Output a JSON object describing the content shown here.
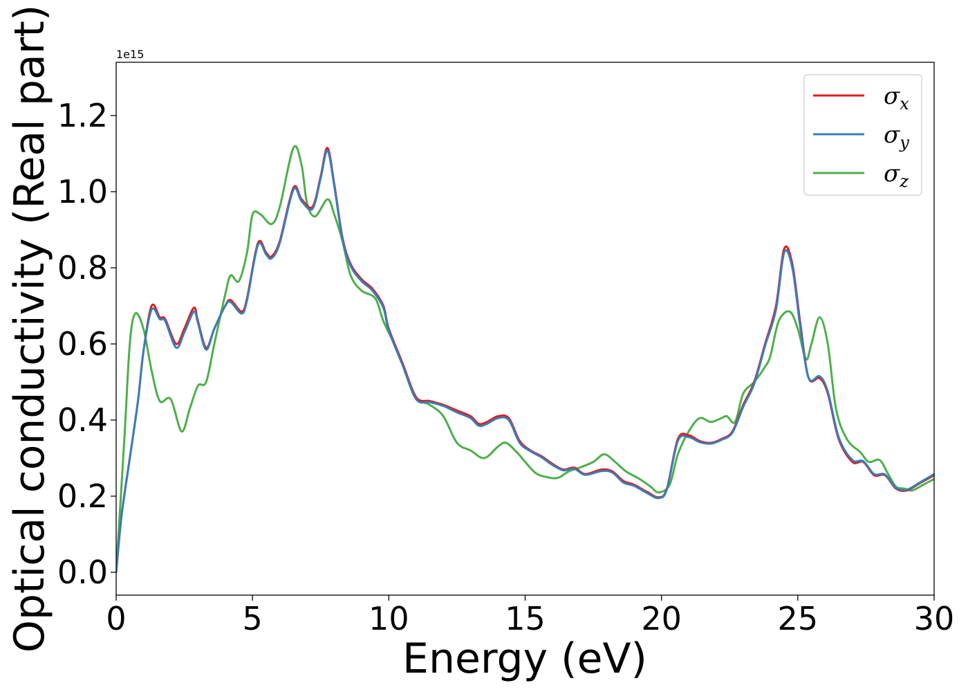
{
  "chart_data": {
    "type": "line",
    "xlabel": "Energy (eV)",
    "ylabel": "Optical conductivity (Real part)",
    "y_offset_label": "1e15",
    "xlim": [
      0,
      30
    ],
    "ylim": [
      -0.06,
      1.34
    ],
    "x_ticks": [
      0,
      5,
      10,
      15,
      20,
      25,
      30
    ],
    "x_tick_labels": [
      "0",
      "5",
      "10",
      "15",
      "20",
      "25",
      "30"
    ],
    "y_ticks": [
      0.0,
      0.2,
      0.4,
      0.6,
      0.8,
      1.0,
      1.2
    ],
    "y_tick_labels": [
      "0.0",
      "0.2",
      "0.4",
      "0.6",
      "0.8",
      "1.0",
      "1.2"
    ],
    "grid": false,
    "legend_position": "top-right",
    "series": [
      {
        "name": "σx",
        "legend_symbol": "σ",
        "legend_subscript": "x",
        "color": "#e41a1c",
        "points": [
          [
            0,
            0.0
          ],
          [
            0.2,
            0.15
          ],
          [
            0.5,
            0.3
          ],
          [
            0.8,
            0.45
          ],
          [
            1.0,
            0.58
          ],
          [
            1.3,
            0.7
          ],
          [
            1.6,
            0.67
          ],
          [
            1.8,
            0.665
          ],
          [
            2.2,
            0.6
          ],
          [
            2.5,
            0.64
          ],
          [
            2.85,
            0.695
          ],
          [
            3.0,
            0.66
          ],
          [
            3.3,
            0.59
          ],
          [
            3.6,
            0.64
          ],
          [
            4.0,
            0.7
          ],
          [
            4.2,
            0.715
          ],
          [
            4.6,
            0.685
          ],
          [
            4.8,
            0.72
          ],
          [
            5.2,
            0.865
          ],
          [
            5.5,
            0.84
          ],
          [
            5.7,
            0.83
          ],
          [
            6.0,
            0.87
          ],
          [
            6.5,
            1.01
          ],
          [
            6.8,
            0.98
          ],
          [
            7.2,
            0.96
          ],
          [
            7.5,
            1.04
          ],
          [
            7.75,
            1.115
          ],
          [
            8.0,
            1.02
          ],
          [
            8.3,
            0.88
          ],
          [
            8.6,
            0.81
          ],
          [
            9.0,
            0.77
          ],
          [
            9.4,
            0.745
          ],
          [
            9.8,
            0.7
          ],
          [
            10.0,
            0.64
          ],
          [
            10.5,
            0.55
          ],
          [
            11.0,
            0.46
          ],
          [
            11.5,
            0.45
          ],
          [
            12.0,
            0.44
          ],
          [
            12.5,
            0.425
          ],
          [
            13.0,
            0.41
          ],
          [
            13.3,
            0.39
          ],
          [
            13.6,
            0.395
          ],
          [
            14.0,
            0.41
          ],
          [
            14.4,
            0.405
          ],
          [
            14.8,
            0.345
          ],
          [
            15.2,
            0.32
          ],
          [
            15.6,
            0.305
          ],
          [
            16.0,
            0.285
          ],
          [
            16.4,
            0.27
          ],
          [
            16.8,
            0.275
          ],
          [
            17.2,
            0.258
          ],
          [
            17.8,
            0.27
          ],
          [
            18.2,
            0.265
          ],
          [
            18.6,
            0.24
          ],
          [
            19.0,
            0.23
          ],
          [
            19.5,
            0.21
          ],
          [
            19.9,
            0.197
          ],
          [
            20.2,
            0.22
          ],
          [
            20.6,
            0.35
          ],
          [
            21.0,
            0.36
          ],
          [
            21.4,
            0.345
          ],
          [
            21.8,
            0.34
          ],
          [
            22.2,
            0.35
          ],
          [
            22.6,
            0.37
          ],
          [
            23.0,
            0.44
          ],
          [
            23.4,
            0.5
          ],
          [
            23.8,
            0.6
          ],
          [
            24.2,
            0.7
          ],
          [
            24.5,
            0.85
          ],
          [
            24.8,
            0.81
          ],
          [
            25.1,
            0.65
          ],
          [
            25.4,
            0.51
          ],
          [
            25.8,
            0.51
          ],
          [
            26.1,
            0.47
          ],
          [
            26.5,
            0.35
          ],
          [
            27.0,
            0.29
          ],
          [
            27.4,
            0.29
          ],
          [
            27.8,
            0.255
          ],
          [
            28.2,
            0.255
          ],
          [
            28.6,
            0.22
          ],
          [
            29.0,
            0.215
          ],
          [
            29.5,
            0.235
          ],
          [
            30.0,
            0.255
          ]
        ]
      },
      {
        "name": "σy",
        "legend_symbol": "σ",
        "legend_subscript": "y",
        "color": "#377eb8",
        "points": [
          [
            0,
            0.0
          ],
          [
            0.2,
            0.15
          ],
          [
            0.5,
            0.3
          ],
          [
            0.8,
            0.45
          ],
          [
            1.0,
            0.58
          ],
          [
            1.3,
            0.69
          ],
          [
            1.6,
            0.665
          ],
          [
            1.8,
            0.66
          ],
          [
            2.2,
            0.59
          ],
          [
            2.5,
            0.63
          ],
          [
            2.85,
            0.685
          ],
          [
            3.0,
            0.655
          ],
          [
            3.3,
            0.585
          ],
          [
            3.6,
            0.64
          ],
          [
            4.0,
            0.7
          ],
          [
            4.2,
            0.71
          ],
          [
            4.6,
            0.68
          ],
          [
            4.8,
            0.715
          ],
          [
            5.2,
            0.86
          ],
          [
            5.5,
            0.835
          ],
          [
            5.7,
            0.825
          ],
          [
            6.0,
            0.865
          ],
          [
            6.5,
            1.005
          ],
          [
            6.8,
            0.975
          ],
          [
            7.2,
            0.955
          ],
          [
            7.5,
            1.035
          ],
          [
            7.75,
            1.108
          ],
          [
            8.0,
            1.015
          ],
          [
            8.3,
            0.875
          ],
          [
            8.6,
            0.805
          ],
          [
            9.0,
            0.765
          ],
          [
            9.4,
            0.74
          ],
          [
            9.8,
            0.695
          ],
          [
            10.0,
            0.635
          ],
          [
            10.5,
            0.545
          ],
          [
            11.0,
            0.455
          ],
          [
            11.5,
            0.447
          ],
          [
            12.0,
            0.437
          ],
          [
            12.5,
            0.42
          ],
          [
            13.0,
            0.405
          ],
          [
            13.3,
            0.385
          ],
          [
            13.6,
            0.39
          ],
          [
            14.0,
            0.405
          ],
          [
            14.4,
            0.4
          ],
          [
            14.8,
            0.34
          ],
          [
            15.2,
            0.318
          ],
          [
            15.6,
            0.302
          ],
          [
            16.0,
            0.282
          ],
          [
            16.4,
            0.268
          ],
          [
            16.8,
            0.272
          ],
          [
            17.2,
            0.256
          ],
          [
            17.8,
            0.266
          ],
          [
            18.2,
            0.262
          ],
          [
            18.6,
            0.236
          ],
          [
            19.0,
            0.227
          ],
          [
            19.5,
            0.207
          ],
          [
            19.9,
            0.195
          ],
          [
            20.2,
            0.218
          ],
          [
            20.6,
            0.345
          ],
          [
            21.0,
            0.355
          ],
          [
            21.4,
            0.342
          ],
          [
            21.8,
            0.338
          ],
          [
            22.2,
            0.348
          ],
          [
            22.6,
            0.367
          ],
          [
            23.0,
            0.435
          ],
          [
            23.4,
            0.495
          ],
          [
            23.8,
            0.595
          ],
          [
            24.2,
            0.69
          ],
          [
            24.5,
            0.84
          ],
          [
            24.8,
            0.8
          ],
          [
            25.1,
            0.64
          ],
          [
            25.4,
            0.51
          ],
          [
            25.8,
            0.515
          ],
          [
            26.1,
            0.475
          ],
          [
            26.5,
            0.355
          ],
          [
            27.0,
            0.295
          ],
          [
            27.4,
            0.292
          ],
          [
            27.8,
            0.258
          ],
          [
            28.2,
            0.257
          ],
          [
            28.6,
            0.222
          ],
          [
            29.0,
            0.217
          ],
          [
            29.5,
            0.237
          ],
          [
            30.0,
            0.258
          ]
        ]
      },
      {
        "name": "σz",
        "legend_symbol": "σ",
        "legend_subscript": "z",
        "color": "#4daf4a",
        "points": [
          [
            0,
            0.0
          ],
          [
            0.3,
            0.35
          ],
          [
            0.5,
            0.6
          ],
          [
            0.7,
            0.68
          ],
          [
            1.0,
            0.64
          ],
          [
            1.3,
            0.53
          ],
          [
            1.6,
            0.45
          ],
          [
            2.0,
            0.455
          ],
          [
            2.4,
            0.37
          ],
          [
            2.7,
            0.43
          ],
          [
            3.0,
            0.49
          ],
          [
            3.3,
            0.5
          ],
          [
            3.6,
            0.6
          ],
          [
            4.0,
            0.73
          ],
          [
            4.2,
            0.78
          ],
          [
            4.5,
            0.765
          ],
          [
            4.8,
            0.84
          ],
          [
            5.0,
            0.94
          ],
          [
            5.3,
            0.94
          ],
          [
            5.7,
            0.915
          ],
          [
            6.0,
            0.96
          ],
          [
            6.5,
            1.115
          ],
          [
            6.8,
            1.07
          ],
          [
            7.0,
            0.97
          ],
          [
            7.3,
            0.935
          ],
          [
            7.75,
            0.98
          ],
          [
            8.0,
            0.94
          ],
          [
            8.3,
            0.87
          ],
          [
            8.6,
            0.78
          ],
          [
            9.0,
            0.74
          ],
          [
            9.5,
            0.72
          ],
          [
            9.8,
            0.66
          ],
          [
            10.2,
            0.6
          ],
          [
            10.5,
            0.55
          ],
          [
            11.0,
            0.46
          ],
          [
            11.5,
            0.44
          ],
          [
            12.0,
            0.41
          ],
          [
            12.5,
            0.34
          ],
          [
            13.0,
            0.32
          ],
          [
            13.5,
            0.3
          ],
          [
            14.0,
            0.33
          ],
          [
            14.3,
            0.34
          ],
          [
            14.7,
            0.315
          ],
          [
            15.0,
            0.29
          ],
          [
            15.4,
            0.26
          ],
          [
            15.8,
            0.25
          ],
          [
            16.2,
            0.248
          ],
          [
            16.6,
            0.265
          ],
          [
            17.0,
            0.275
          ],
          [
            17.5,
            0.29
          ],
          [
            17.9,
            0.31
          ],
          [
            18.3,
            0.29
          ],
          [
            18.7,
            0.265
          ],
          [
            19.2,
            0.245
          ],
          [
            19.6,
            0.225
          ],
          [
            19.9,
            0.21
          ],
          [
            20.3,
            0.23
          ],
          [
            20.6,
            0.31
          ],
          [
            21.0,
            0.37
          ],
          [
            21.4,
            0.405
          ],
          [
            21.8,
            0.395
          ],
          [
            22.2,
            0.405
          ],
          [
            22.4,
            0.41
          ],
          [
            22.7,
            0.395
          ],
          [
            23.0,
            0.47
          ],
          [
            23.4,
            0.5
          ],
          [
            23.8,
            0.54
          ],
          [
            24.0,
            0.57
          ],
          [
            24.3,
            0.66
          ],
          [
            24.7,
            0.685
          ],
          [
            25.0,
            0.64
          ],
          [
            25.3,
            0.56
          ],
          [
            25.5,
            0.6
          ],
          [
            25.8,
            0.67
          ],
          [
            26.1,
            0.6
          ],
          [
            26.4,
            0.43
          ],
          [
            26.8,
            0.35
          ],
          [
            27.3,
            0.315
          ],
          [
            27.6,
            0.29
          ],
          [
            28.0,
            0.295
          ],
          [
            28.3,
            0.26
          ],
          [
            28.6,
            0.225
          ],
          [
            28.9,
            0.22
          ],
          [
            29.2,
            0.215
          ],
          [
            29.6,
            0.23
          ],
          [
            30.0,
            0.245
          ]
        ]
      }
    ]
  }
}
